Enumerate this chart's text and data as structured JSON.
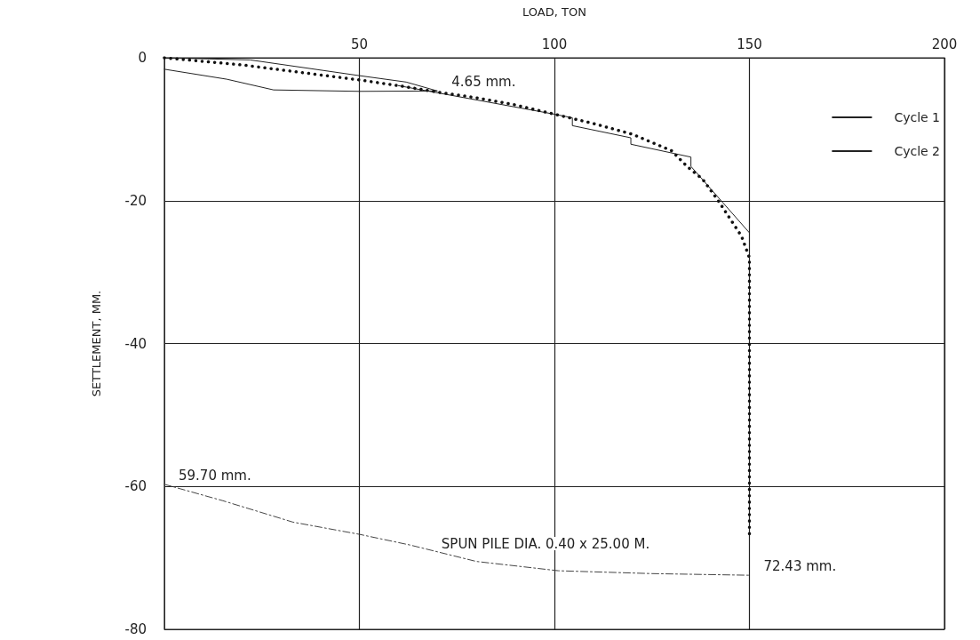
{
  "chart_data": {
    "type": "line",
    "xlabel": "LOAD, TON",
    "ylabel": "SETTLEMENT, MM.",
    "xlim": [
      0,
      200
    ],
    "xticks": [
      50,
      100,
      150,
      200
    ],
    "ylim": [
      -80,
      0
    ],
    "yticks": [
      0,
      -20,
      -40,
      -60,
      -80
    ],
    "grid": true,
    "legend": "top right",
    "marker": "none",
    "series": [
      {
        "name": "Cycle 1",
        "color": "#222222",
        "line_style": "solid",
        "x": [
          0,
          22,
          50,
          62,
          70,
          50,
          28,
          16,
          0
        ],
        "values": [
          0,
          -0.3,
          -2.5,
          -3.4,
          -4.65,
          -4.7,
          -4.5,
          -3.0,
          -1.6
        ]
      },
      {
        "name": "Cycle 2",
        "color": "#222222",
        "line_style": "solid",
        "x": [
          60,
          100,
          104.6,
          104.6,
          119.6,
          119.6,
          135,
          135,
          150,
          150
        ],
        "values": [
          -3.9,
          -7.9,
          -8.4,
          -9.5,
          -11.2,
          -12.1,
          -13.9,
          -15.2,
          -24.5,
          -72.43
        ]
      },
      {
        "color": "#111111",
        "line_style": "dotted",
        "x": [
          0,
          10,
          20,
          30,
          40,
          50,
          60,
          70,
          80,
          90,
          100,
          110,
          120,
          130,
          134,
          138,
          142,
          145,
          148,
          150,
          150
        ],
        "values": [
          0,
          -0.5,
          -1.0,
          -1.7,
          -2.4,
          -3.1,
          -3.9,
          -4.8,
          -5.6,
          -6.6,
          -7.9,
          -9.2,
          -10.7,
          -13.0,
          -15.2,
          -17.0,
          -20,
          -22.5,
          -25,
          -28,
          -67
        ]
      },
      {
        "color": "#444444",
        "line_style": "dashed",
        "x": [
          0,
          15,
          33,
          50,
          63,
          80,
          101,
          125,
          150
        ],
        "values": [
          -59.7,
          -62,
          -65,
          -66.7,
          -68.2,
          -70.5,
          -71.8,
          -72.2,
          -72.43
        ]
      }
    ],
    "annotations": [
      {
        "text": "4.65 mm.",
        "x": 70,
        "y": -4.65
      },
      {
        "text": "59.70 mm.",
        "x": 0,
        "y": -59.7
      },
      {
        "text": "72.43 mm.",
        "x": 150,
        "y": -72.43
      },
      "SPUN PILE DIA. 0.40 x 25.00 M."
    ]
  }
}
